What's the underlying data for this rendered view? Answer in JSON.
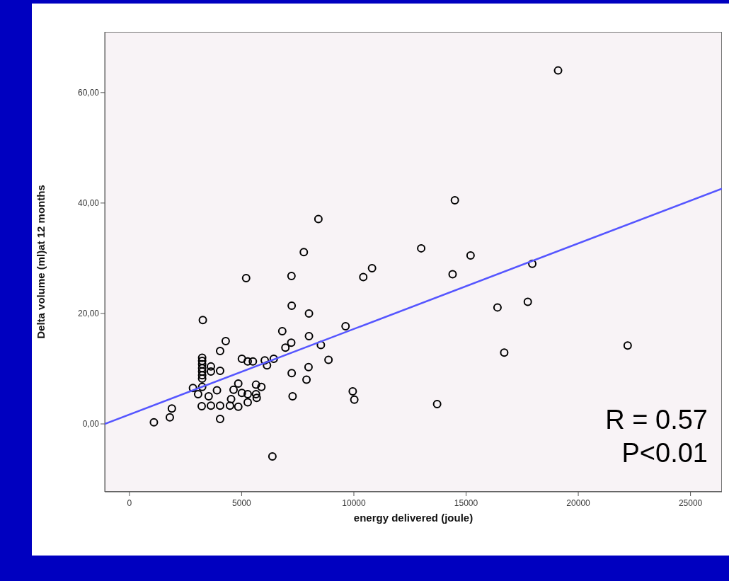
{
  "chart_data": {
    "type": "scatter",
    "xlabel": "energy delivered (joule)",
    "ylabel": "Delta volume (ml)at 12 months",
    "xlim": [
      -1100,
      26400
    ],
    "xticks": [
      0,
      5000,
      10000,
      15000,
      20000,
      25000
    ],
    "ylim": [
      -12.3,
      71
    ],
    "yticks": [
      {
        "value": 0,
        "label": "0,00"
      },
      {
        "value": 20,
        "label": "20,00"
      },
      {
        "value": 40,
        "label": "40,00"
      },
      {
        "value": 60,
        "label": "60,00"
      }
    ],
    "marker": "circle",
    "annotations": [
      "R = 0.57",
      "P<0.01"
    ],
    "series": [
      {
        "type": "scatter",
        "color": "#000000",
        "x": [
          1090,
          1800,
          1890,
          2830,
          3060,
          3220,
          3270,
          3240,
          3240,
          3240,
          3240,
          3240,
          3240,
          3240,
          3240,
          3530,
          3630,
          3630,
          3630,
          3900,
          4040,
          4040,
          4040,
          4040,
          4290,
          4480,
          4530,
          4640,
          4850,
          4850,
          5010,
          5010,
          5200,
          5270,
          5270,
          5270,
          5500,
          5640,
          5640,
          5670,
          5880,
          6030,
          6130,
          6370,
          6430,
          6810,
          6950,
          7210,
          7220,
          7230,
          7230,
          7270,
          7770,
          7890,
          7980,
          8000,
          8000,
          8420,
          8530,
          8870,
          9630,
          9950,
          10020,
          10420,
          10810,
          13000,
          13710,
          14400,
          14500,
          15200,
          16400,
          16700,
          17750,
          17950,
          19100,
          22200
        ],
        "values": [
          0.3,
          1.2,
          2.8,
          6.5,
          5.4,
          3.2,
          18.8,
          12.0,
          11.4,
          10.8,
          10.1,
          9.5,
          8.8,
          8.2,
          6.7,
          5.0,
          10.4,
          9.5,
          3.3,
          6.1,
          13.2,
          9.6,
          3.3,
          0.9,
          15.0,
          3.3,
          4.5,
          6.2,
          7.3,
          3.1,
          11.8,
          5.6,
          26.4,
          11.3,
          5.4,
          3.9,
          11.3,
          7.1,
          5.4,
          4.7,
          6.7,
          11.5,
          10.6,
          -5.9,
          11.8,
          16.8,
          13.8,
          14.7,
          26.8,
          21.4,
          9.2,
          5.0,
          31.1,
          8.0,
          10.3,
          15.9,
          20.0,
          37.1,
          14.3,
          11.6,
          17.7,
          5.9,
          4.4,
          26.6,
          28.2,
          31.8,
          3.6,
          27.1,
          40.5,
          30.5,
          21.1,
          12.9,
          22.1,
          29.0,
          64.0,
          14.2
        ]
      },
      {
        "type": "line",
        "color": "#5555ff",
        "marker": "none",
        "x": [
          -1100,
          26400
        ],
        "values": [
          0,
          42.6
        ]
      }
    ]
  }
}
